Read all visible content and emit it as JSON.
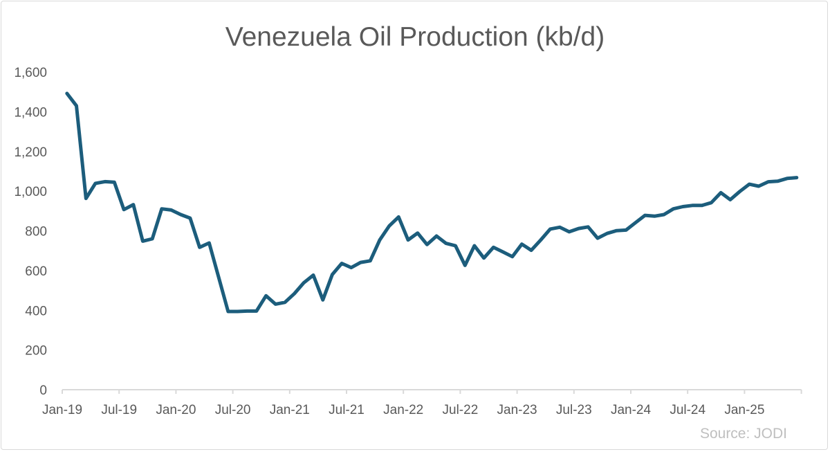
{
  "chart_data": {
    "type": "line",
    "title": "Venezuela Oil Production (kb/d)",
    "xlabel": "",
    "ylabel": "",
    "ylim": [
      0,
      1600
    ],
    "grid": false,
    "legend": "none",
    "y_ticks": [
      "0",
      "200",
      "400",
      "600",
      "800",
      "1,000",
      "1,200",
      "1,400",
      "1,600"
    ],
    "y_tick_values": [
      0,
      200,
      400,
      600,
      800,
      1000,
      1200,
      1400,
      1600
    ],
    "x_tick_labels": [
      "Jan-19",
      "Jul-19",
      "Jan-20",
      "Jul-20",
      "Jan-21",
      "Jul-21",
      "Jan-22",
      "Jul-22",
      "Jan-23",
      "Jul-23",
      "Jan-24",
      "Jul-24",
      "Jan-25"
    ],
    "x_start": "Jan-19",
    "x_end": "Jun-25",
    "series": [
      {
        "name": "Venezuela Oil Production",
        "color": "#1c5d7c",
        "values": [
          1492,
          1430,
          963,
          1039,
          1048,
          1045,
          907,
          932,
          748,
          760,
          911,
          905,
          882,
          864,
          717,
          739,
          568,
          394,
          394,
          396,
          396,
          473,
          431,
          440,
          484,
          539,
          577,
          452,
          580,
          636,
          615,
          641,
          649,
          754,
          824,
          870,
          754,
          789,
          731,
          774,
          737,
          725,
          626,
          725,
          663,
          717,
          694,
          670,
          733,
          702,
          754,
          809,
          818,
          795,
          812,
          820,
          763,
          787,
          801,
          804,
          841,
          878,
          874,
          882,
          911,
          922,
          928,
          928,
          942,
          992,
          957,
          998,
          1035,
          1025,
          1047,
          1050,
          1064,
          1068
        ]
      }
    ],
    "source": "Source: JODI"
  }
}
